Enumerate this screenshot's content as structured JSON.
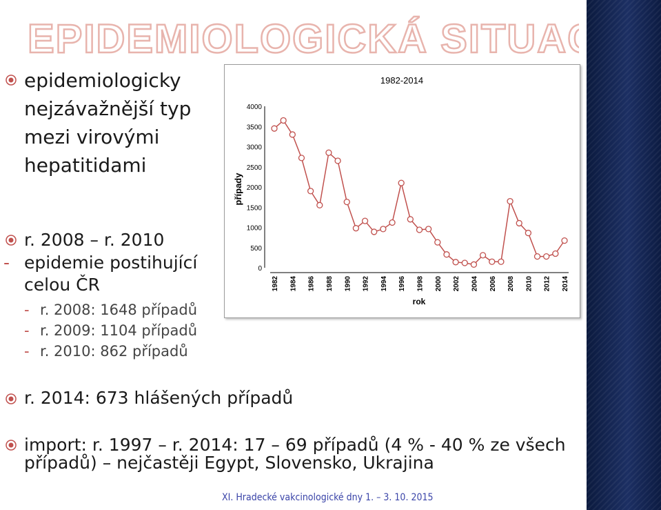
{
  "page": {
    "title": "EPIDEMIOLOGICKÁ SITUACE V ČR",
    "footer": "XI. Hradecké vakcinologické dny 1. – 3. 10. 2015",
    "accent_color": "#e8b4ad",
    "bullet_color": "#c0504d"
  },
  "bullets": [
    {
      "lines": [
        "epidemiologicky",
        "nejzávažnější typ",
        "mezi virovými",
        "hepatitidami"
      ]
    },
    {
      "lines": [
        "r. 2008 – r. 2010"
      ]
    },
    {
      "lines": [
        "r. 2014: 673 hlášených případů"
      ]
    },
    {
      "lines": [
        "import: r. 1997 – r. 2014: 17 – 69 případů (4 % - 40 % ze všech",
        "případů) – nejčastěji Egypt, Slovensko, Ukrajina"
      ]
    }
  ],
  "subbullets": [
    {
      "dash": "-",
      "lines": [
        "epidemie postihující",
        "celou ČR"
      ]
    },
    {
      "dash": "-",
      "lines": [
        "r. 2008: 1648 případů"
      ]
    },
    {
      "dash": "-",
      "lines": [
        "r. 2009: 1104 případů"
      ]
    },
    {
      "dash": "-",
      "lines": [
        "r. 2010: 862 případů"
      ]
    }
  ],
  "chart_data": {
    "type": "line",
    "title": "1982-2014",
    "xlabel": "rok",
    "ylabel": "případy",
    "x": [
      1982,
      1983,
      1984,
      1985,
      1986,
      1987,
      1988,
      1989,
      1990,
      1991,
      1992,
      1993,
      1994,
      1995,
      1996,
      1997,
      1998,
      1999,
      2000,
      2001,
      2002,
      2003,
      2004,
      2005,
      2006,
      2007,
      2008,
      2009,
      2010,
      2011,
      2012,
      2013,
      2014
    ],
    "values": [
      3450,
      3650,
      3300,
      2720,
      1900,
      1550,
      2850,
      2650,
      1630,
      980,
      1160,
      890,
      960,
      1120,
      2100,
      1200,
      940,
      960,
      630,
      330,
      140,
      120,
      80,
      310,
      150,
      150,
      1648,
      1104,
      862,
      280,
      280,
      350,
      673
    ],
    "xticks": [
      "1982",
      "1984",
      "1986",
      "1988",
      "1990",
      "1992",
      "1994",
      "1996",
      "1998",
      "2000",
      "2002",
      "2004",
      "2006",
      "2008",
      "2010",
      "2012",
      "2014"
    ],
    "yticks": [
      "0",
      "500",
      "1000",
      "1500",
      "2000",
      "2500",
      "3000",
      "3500",
      "4000"
    ],
    "ylim": [
      0,
      4000
    ],
    "line_color": "#c0504d",
    "grid": false,
    "legend": "none"
  }
}
